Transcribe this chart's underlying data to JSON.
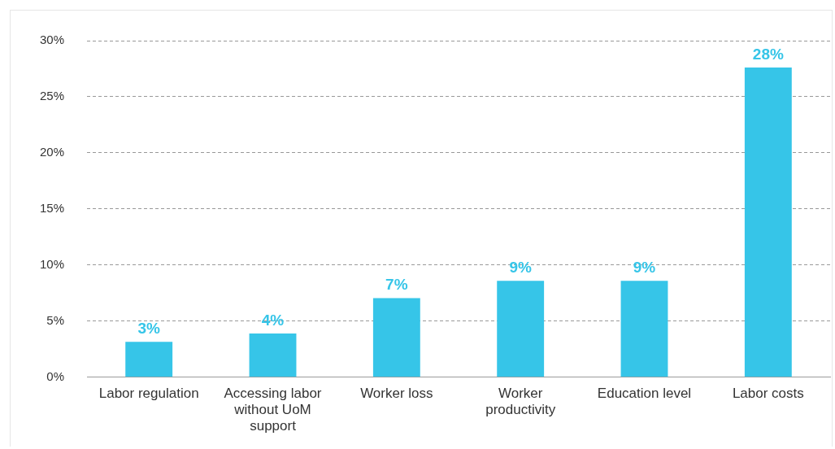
{
  "chart_data": {
    "type": "bar",
    "categories": [
      "Labor regulation",
      "Accessing labor without UoM support",
      "Worker loss",
      "Worker productivity",
      "Education level",
      "Labor costs"
    ],
    "values": [
      3.15,
      3.9,
      7.05,
      8.6,
      8.6,
      27.6
    ],
    "value_labels": [
      "3%",
      "4%",
      "7%",
      "9%",
      "9%",
      "28%"
    ],
    "color": "#36c5e8",
    "ylim": [
      0,
      30
    ],
    "yticks": [
      {
        "value": 0,
        "label": "0%"
      },
      {
        "value": 5,
        "label": "5%"
      },
      {
        "value": 10,
        "label": "10%"
      },
      {
        "value": 15,
        "label": "15%"
      },
      {
        "value": 20,
        "label": "20%"
      },
      {
        "value": 25,
        "label": "25%"
      },
      {
        "value": 30,
        "label": "30%"
      }
    ],
    "grid": "y",
    "legend": false
  }
}
